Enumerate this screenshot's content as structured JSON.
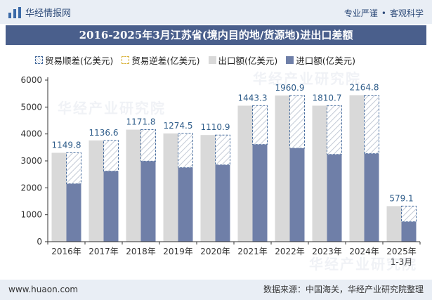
{
  "header": {
    "brand": "华经情报网",
    "tagline_left": "专业严谨",
    "tagline_right": "客观科学"
  },
  "watermark": "华经产业研究院",
  "chart_data": {
    "type": "bar",
    "title": "2016-2025年3月江苏省(境内目的地/货源地)进出口差额",
    "legend": [
      {
        "label": "贸易顺差(亿美元)",
        "color": "#4a6fa0"
      },
      {
        "label": "贸易逆差(亿美元)",
        "color": "#d9b33a"
      },
      {
        "label": "出口额(亿美元)",
        "color": "#d9d9d9"
      },
      {
        "label": "进口额(亿美元)",
        "color": "#6f7fa8"
      }
    ],
    "legend_placement": "top",
    "categories": [
      "2016年",
      "2017年",
      "2018年",
      "2019年",
      "2020年",
      "2021年",
      "2022年",
      "2023年",
      "2024年",
      "2025年\n1-3月"
    ],
    "series": [
      {
        "name": "出口额(亿美元)",
        "values": [
          3300,
          3760,
          4160,
          4020,
          3960,
          5050,
          5430,
          5050,
          5440,
          1320
        ]
      },
      {
        "name": "进口额(亿美元)",
        "values": [
          2150,
          2620,
          2990,
          2750,
          2850,
          3610,
          3470,
          3240,
          3270,
          740
        ]
      },
      {
        "name": "贸易顺差(亿美元)",
        "values": [
          1149.8,
          1136.6,
          1171.8,
          1274.5,
          1110.9,
          1443.3,
          1960.9,
          1810.7,
          2164.8,
          579.1
        ]
      }
    ],
    "data_labels": [
      "1149.8",
      "1136.6",
      "1171.8",
      "1274.5",
      "1110.9",
      "1443.3",
      "1960.9",
      "1810.7",
      "2164.8",
      "579.1"
    ],
    "yticks": [
      "0",
      "1000",
      "2000",
      "3000",
      "4000",
      "5000",
      "6000"
    ],
    "ylim": [
      0,
      6000
    ],
    "grid": false,
    "colors": {
      "export": "#d9d9d9",
      "import": "#6f7fa8",
      "surplus_border": "#4a6fa0",
      "label": "#2f5d8a"
    }
  },
  "footer": {
    "site": "www.huaon.com",
    "source": "数据来源：中国海关，华经产业研究院整理"
  }
}
